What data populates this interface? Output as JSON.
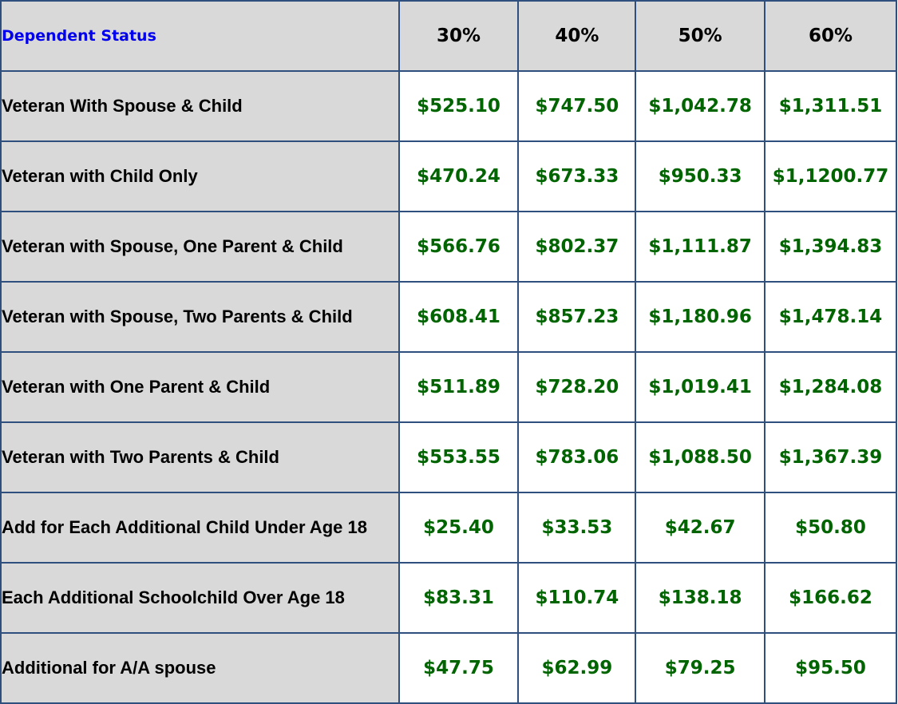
{
  "table": {
    "header": {
      "label": "Dependent Status",
      "columns": [
        "30%",
        "40%",
        "50%",
        "60%"
      ]
    },
    "rows": [
      {
        "label": "Veteran With Spouse & Child",
        "values": [
          "$525.10",
          "$747.50",
          "$1,042.78",
          "$1,311.51"
        ]
      },
      {
        "label": "Veteran with Child Only",
        "values": [
          "$470.24",
          "$673.33",
          "$950.33",
          "$1,1200.77"
        ]
      },
      {
        "label": "Veteran with Spouse, One Parent & Child",
        "values": [
          "$566.76",
          "$802.37",
          "$1,111.87",
          "$1,394.83"
        ]
      },
      {
        "label": "Veteran with Spouse, Two Parents & Child",
        "values": [
          "$608.41",
          "$857.23",
          "$1,180.96",
          "$1,478.14"
        ]
      },
      {
        "label": "Veteran with One Parent & Child",
        "values": [
          "$511.89",
          "$728.20",
          "$1,019.41",
          "$1,284.08"
        ]
      },
      {
        "label": "Veteran with Two Parents & Child",
        "values": [
          "$553.55",
          "$783.06",
          "$1,088.50",
          "$1,367.39"
        ]
      },
      {
        "label": "Add for Each Additional Child Under Age 18",
        "values": [
          "$25.40",
          "$33.53",
          "$42.67",
          "$50.80"
        ]
      },
      {
        "label": "Each Additional Schoolchild Over Age 18",
        "values": [
          "$83.31",
          "$110.74",
          "$138.18",
          "$166.62"
        ]
      },
      {
        "label": "Additional for A/A spouse",
        "values": [
          "$47.75",
          "$62.99",
          "$79.25",
          "$95.50"
        ]
      }
    ]
  },
  "colors": {
    "header_label": "#0000ee",
    "value_text": "#006400",
    "label_background": "#d9d9d9",
    "border": "#2f4f7f"
  }
}
